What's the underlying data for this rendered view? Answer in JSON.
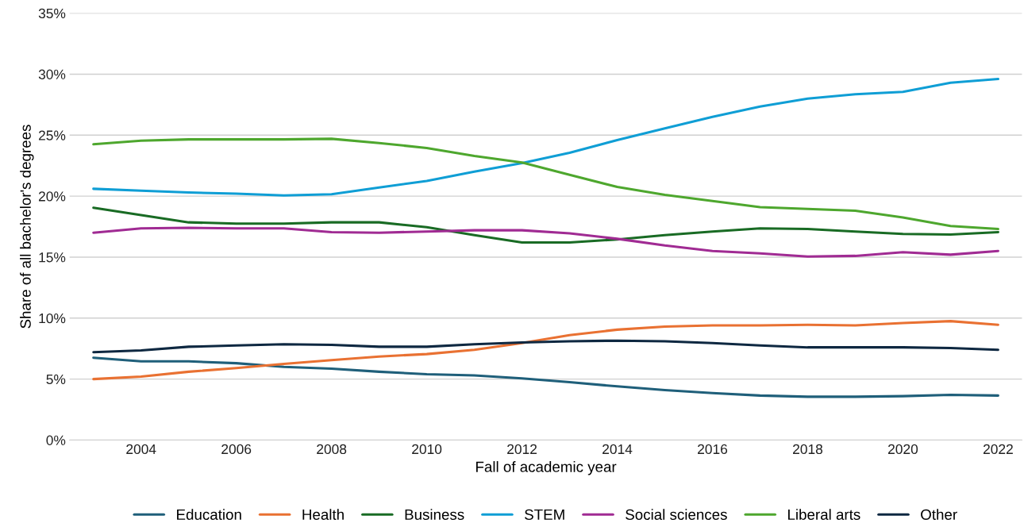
{
  "chart_data": {
    "type": "line",
    "xlabel": "Fall of academic year",
    "ylabel": "Share of all bachelor's degrees",
    "x": [
      2003,
      2004,
      2005,
      2006,
      2007,
      2008,
      2009,
      2010,
      2011,
      2012,
      2013,
      2014,
      2015,
      2016,
      2017,
      2018,
      2019,
      2020,
      2021,
      2022
    ],
    "series": [
      {
        "name": "Education",
        "color": "#1f5f7a",
        "values": [
          6.75,
          6.45,
          6.45,
          6.3,
          6.0,
          5.85,
          5.6,
          5.4,
          5.3,
          5.05,
          4.75,
          4.4,
          4.1,
          3.85,
          3.65,
          3.55,
          3.55,
          3.6,
          3.7,
          3.65
        ]
      },
      {
        "name": "Health",
        "color": "#e97132",
        "values": [
          5.0,
          5.2,
          5.6,
          5.9,
          6.25,
          6.55,
          6.85,
          7.05,
          7.4,
          7.95,
          8.6,
          9.05,
          9.3,
          9.4,
          9.4,
          9.45,
          9.4,
          9.6,
          9.75,
          9.45
        ]
      },
      {
        "name": "Business",
        "color": "#196b24",
        "values": [
          19.05,
          18.45,
          17.85,
          17.75,
          17.75,
          17.85,
          17.85,
          17.45,
          16.8,
          16.2,
          16.2,
          16.45,
          16.8,
          17.1,
          17.35,
          17.3,
          17.1,
          16.9,
          16.85,
          17.05
        ]
      },
      {
        "name": "STEM",
        "color": "#0f9ed5",
        "values": [
          20.6,
          20.45,
          20.3,
          20.2,
          20.05,
          20.15,
          20.7,
          21.25,
          22.0,
          22.7,
          23.55,
          24.6,
          25.55,
          26.5,
          27.35,
          28.0,
          28.35,
          28.55,
          29.3,
          29.6
        ]
      },
      {
        "name": "Social sciences",
        "color": "#a02b93",
        "values": [
          17.0,
          17.35,
          17.4,
          17.35,
          17.35,
          17.05,
          17.0,
          17.1,
          17.2,
          17.2,
          16.95,
          16.5,
          15.95,
          15.5,
          15.3,
          15.05,
          15.1,
          15.4,
          15.2,
          15.5
        ]
      },
      {
        "name": "Liberal arts",
        "color": "#4ea72e",
        "values": [
          24.25,
          24.55,
          24.65,
          24.65,
          24.65,
          24.7,
          24.35,
          23.95,
          23.3,
          22.75,
          21.75,
          20.75,
          20.1,
          19.6,
          19.1,
          18.95,
          18.8,
          18.25,
          17.55,
          17.3
        ]
      },
      {
        "name": "Other",
        "color": "#0e2841",
        "values": [
          7.2,
          7.35,
          7.65,
          7.75,
          7.85,
          7.8,
          7.65,
          7.65,
          7.85,
          8.0,
          8.1,
          8.15,
          8.1,
          7.95,
          7.75,
          7.6,
          7.6,
          7.6,
          7.55,
          7.4
        ]
      }
    ],
    "xlim": [
      2002.5,
      2022.5
    ],
    "xticks": [
      2004,
      2006,
      2008,
      2010,
      2012,
      2014,
      2016,
      2018,
      2020,
      2022
    ],
    "ylim": [
      0,
      35
    ],
    "yticks": [
      {
        "value": 0,
        "label": "0%"
      },
      {
        "value": 5,
        "label": "5%"
      },
      {
        "value": 10,
        "label": "10%"
      },
      {
        "value": 15,
        "label": "15%"
      },
      {
        "value": 20,
        "label": "20%"
      },
      {
        "value": 25,
        "label": "25%"
      },
      {
        "value": 30,
        "label": "30%"
      },
      {
        "value": 35,
        "label": "35%"
      }
    ],
    "grid": "y",
    "legend": "bottom",
    "marker": "none",
    "line_style": "solid"
  }
}
